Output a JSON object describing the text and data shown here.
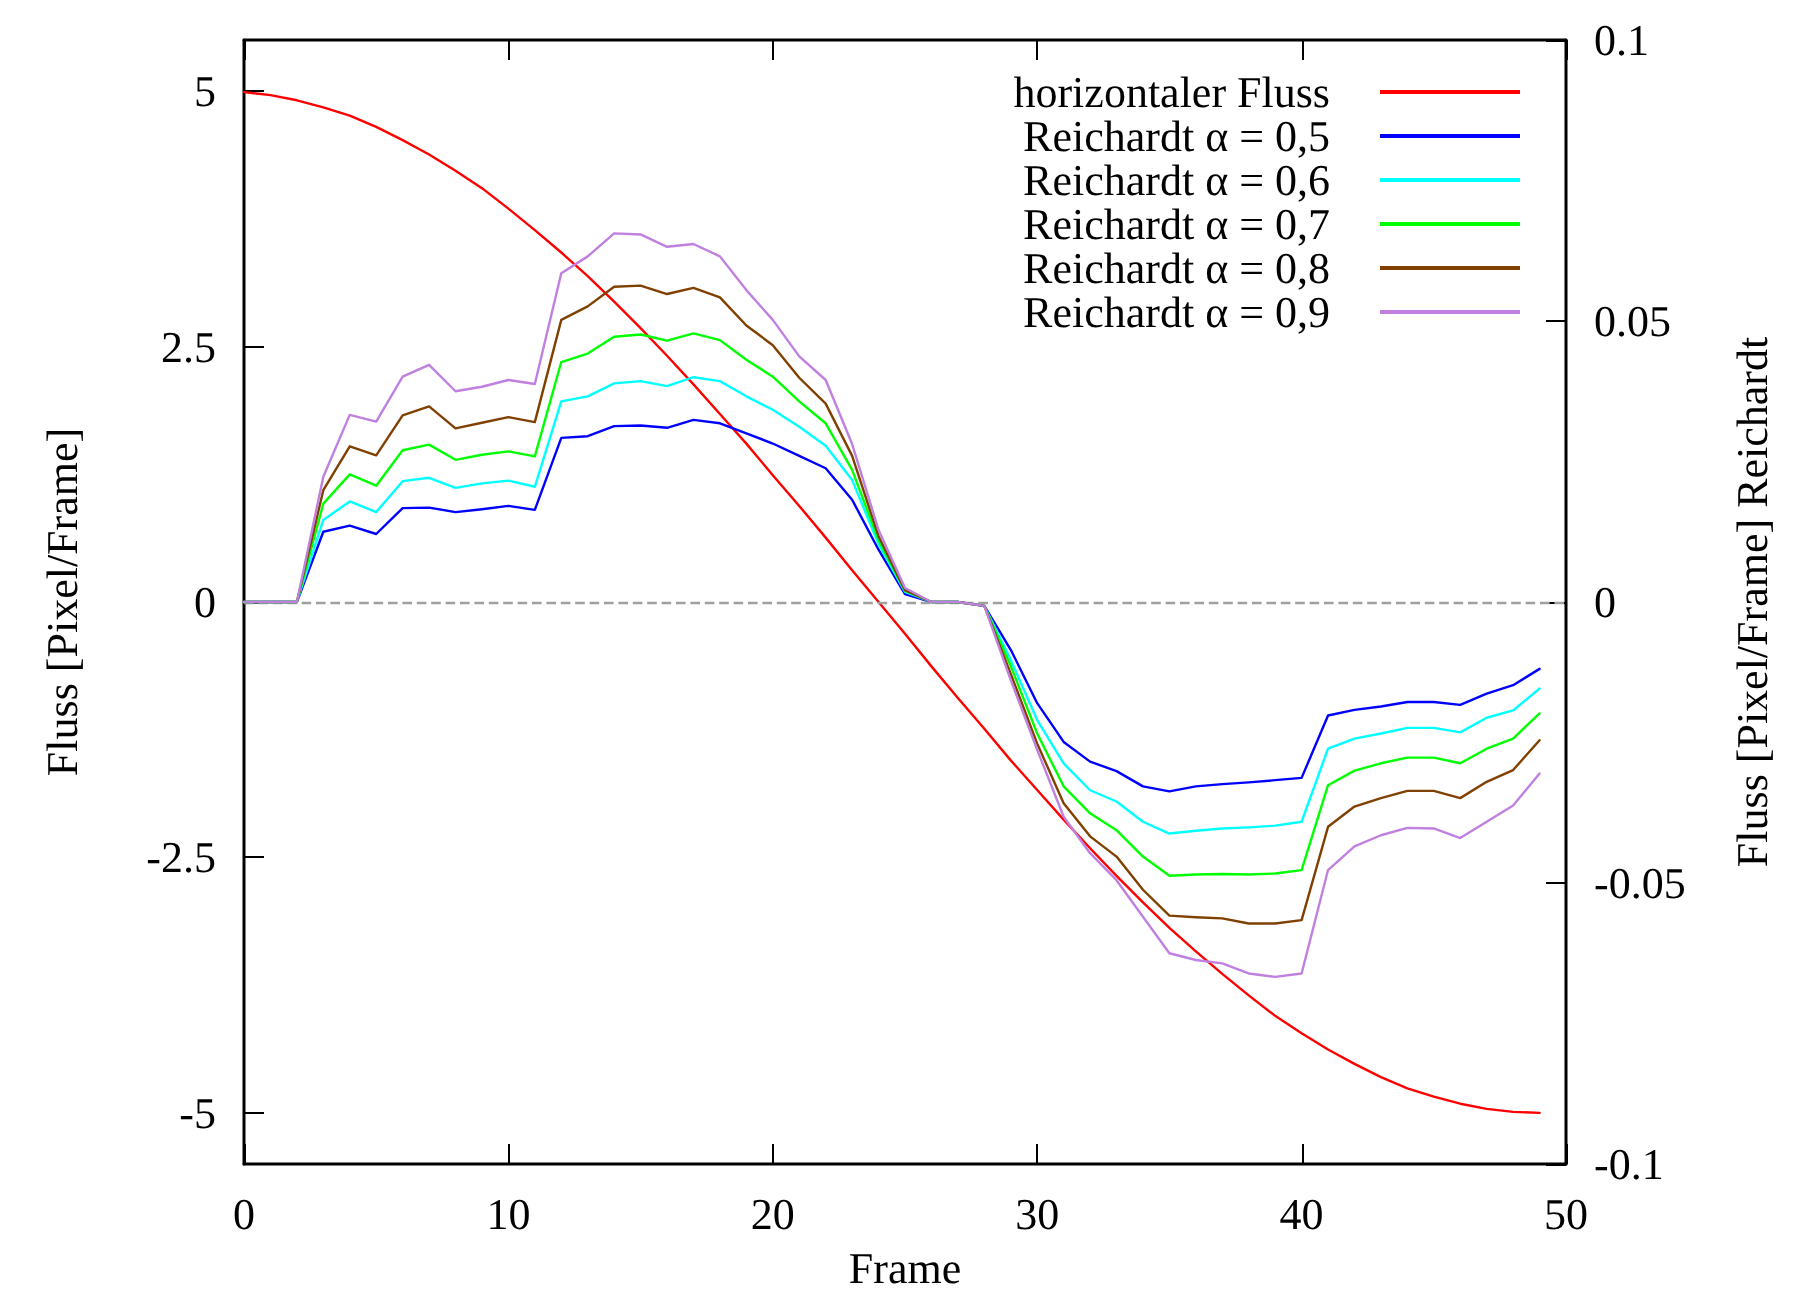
{
  "chart_data": {
    "type": "line",
    "xlabel": "Frame",
    "ylabel": "Fluss [Pixel/Frame]",
    "y2label": "Fluss [Pixel/Frame] Reichardt",
    "x": [
      0,
      1,
      2,
      3,
      4,
      5,
      6,
      7,
      8,
      9,
      10,
      11,
      12,
      13,
      14,
      15,
      16,
      17,
      18,
      19,
      20,
      21,
      22,
      23,
      24,
      25,
      26,
      27,
      28,
      29,
      30,
      31,
      32,
      33,
      34,
      35,
      36,
      37,
      38,
      39,
      40,
      41,
      42,
      43,
      44,
      45,
      46,
      47,
      48,
      49
    ],
    "series": [
      {
        "name": "horizontaler Fluss",
        "color": "#ff0000",
        "values": [
          4.99,
          4.96,
          4.91,
          4.84,
          4.76,
          4.65,
          4.52,
          4.38,
          4.22,
          4.05,
          3.85,
          3.64,
          3.42,
          3.19,
          2.94,
          2.68,
          2.41,
          2.13,
          1.84,
          1.55,
          1.24,
          0.94,
          0.63,
          0.31,
          0,
          -0.31,
          -0.63,
          -0.94,
          -1.24,
          -1.55,
          -1.84,
          -2.13,
          -2.41,
          -2.68,
          -2.94,
          -3.19,
          -3.42,
          -3.64,
          -3.85,
          -4.05,
          -4.22,
          -4.38,
          -4.52,
          -4.65,
          -4.76,
          -4.84,
          -4.91,
          -4.96,
          -4.99,
          -5.0
        ]
      },
      {
        "name": "Reichardt α = 0,5",
        "color": "#0000ff",
        "axis": "y2",
        "values": [
          0,
          0,
          0,
          0.0125,
          0.0136,
          0.0121,
          0.0167,
          0.0168,
          0.016,
          0.0165,
          0.0171,
          0.0164,
          0.0292,
          0.0295,
          0.0313,
          0.0314,
          0.031,
          0.0324,
          0.0318,
          0.03,
          0.0282,
          0.026,
          0.0238,
          0.0182,
          0.0093,
          0.0014,
          0,
          0,
          -0.0007,
          -0.0085,
          -0.018,
          -0.0249,
          -0.0284,
          -0.0301,
          -0.0328,
          -0.0337,
          -0.0328,
          -0.0324,
          -0.0321,
          -0.0317,
          -0.0313,
          -0.0202,
          -0.0192,
          -0.0186,
          -0.0178,
          -0.0178,
          -0.0183,
          -0.0163,
          -0.0148,
          -0.0119
        ]
      },
      {
        "name": "Reichardt α = 0,6",
        "color": "#00ffff",
        "axis": "y2",
        "values": [
          0,
          0,
          0,
          0.0146,
          0.0179,
          0.016,
          0.0215,
          0.0221,
          0.0203,
          0.0211,
          0.0216,
          0.0205,
          0.0357,
          0.0366,
          0.0389,
          0.0393,
          0.0384,
          0.04,
          0.0393,
          0.0366,
          0.0342,
          0.0312,
          0.0278,
          0.0217,
          0.0103,
          0.0018,
          0,
          0,
          -0.0007,
          -0.0103,
          -0.021,
          -0.0287,
          -0.0335,
          -0.0355,
          -0.0391,
          -0.0412,
          -0.0407,
          -0.0403,
          -0.0401,
          -0.0398,
          -0.0391,
          -0.0261,
          -0.0243,
          -0.0234,
          -0.0224,
          -0.0224,
          -0.0232,
          -0.0206,
          -0.0193,
          -0.0154
        ]
      },
      {
        "name": "Reichardt α = 0,7",
        "color": "#00ff00",
        "axis": "y2",
        "values": [
          0,
          0,
          0,
          0.0175,
          0.0227,
          0.0207,
          0.027,
          0.028,
          0.0253,
          0.0262,
          0.0268,
          0.0259,
          0.0427,
          0.0442,
          0.0472,
          0.0476,
          0.0465,
          0.0478,
          0.0466,
          0.0431,
          0.0401,
          0.0357,
          0.0318,
          0.0235,
          0.011,
          0.002,
          0,
          0,
          -0.0007,
          -0.0114,
          -0.0234,
          -0.0328,
          -0.0376,
          -0.0406,
          -0.0453,
          -0.0487,
          -0.0485,
          -0.0484,
          -0.0485,
          -0.0483,
          -0.0477,
          -0.0326,
          -0.03,
          -0.0287,
          -0.0277,
          -0.0277,
          -0.0287,
          -0.0261,
          -0.0243,
          -0.0198
        ]
      },
      {
        "name": "Reichardt α = 0,8",
        "color": "#804000",
        "axis": "y2",
        "values": [
          0,
          0,
          0,
          0.0199,
          0.0277,
          0.0261,
          0.0332,
          0.0348,
          0.0309,
          0.0319,
          0.0329,
          0.032,
          0.0502,
          0.0526,
          0.0561,
          0.0563,
          0.0548,
          0.0559,
          0.0542,
          0.0492,
          0.0457,
          0.0399,
          0.0353,
          0.026,
          0.0117,
          0.0021,
          0,
          0,
          -0.0007,
          -0.0128,
          -0.0252,
          -0.0358,
          -0.0417,
          -0.0453,
          -0.0512,
          -0.0558,
          -0.0561,
          -0.0563,
          -0.0572,
          -0.0572,
          -0.0566,
          -0.04,
          -0.0364,
          -0.0349,
          -0.0336,
          -0.0336,
          -0.0349,
          -0.032,
          -0.0299,
          -0.0246
        ]
      },
      {
        "name": "Reichardt α = 0,9",
        "color": "#c080e0",
        "axis": "y2",
        "values": [
          0,
          0,
          0,
          0.0223,
          0.0333,
          0.0321,
          0.0401,
          0.0422,
          0.0375,
          0.0383,
          0.0395,
          0.0388,
          0.0585,
          0.0615,
          0.0656,
          0.0654,
          0.0632,
          0.0637,
          0.0615,
          0.0555,
          0.0502,
          0.0437,
          0.0395,
          0.0281,
          0.0128,
          0.0025,
          0,
          0,
          -0.0007,
          -0.0139,
          -0.0263,
          -0.0382,
          -0.0447,
          -0.0495,
          -0.056,
          -0.0625,
          -0.0637,
          -0.0643,
          -0.0661,
          -0.0667,
          -0.0661,
          -0.0477,
          -0.0435,
          -0.0415,
          -0.0402,
          -0.0403,
          -0.042,
          -0.0391,
          -0.0362,
          -0.0305
        ]
      }
    ],
    "xlim": [
      0,
      50
    ],
    "xticks": [
      0,
      10,
      20,
      30,
      40,
      50
    ],
    "ylim": [
      -5.5,
      5.5
    ],
    "yticks": [
      -5,
      -2.5,
      0,
      2.5,
      5
    ],
    "y2lim": [
      -0.1,
      0.1
    ],
    "y2ticks": [
      -0.1,
      -0.05,
      0,
      0.05,
      0.1
    ],
    "ref_lines": [
      {
        "axis": "y",
        "value": 0,
        "color": "#a0a0a0",
        "line_style": "dashed"
      }
    ],
    "grid": false,
    "legend": "top right",
    "marker": "none",
    "line_style": "solid"
  }
}
